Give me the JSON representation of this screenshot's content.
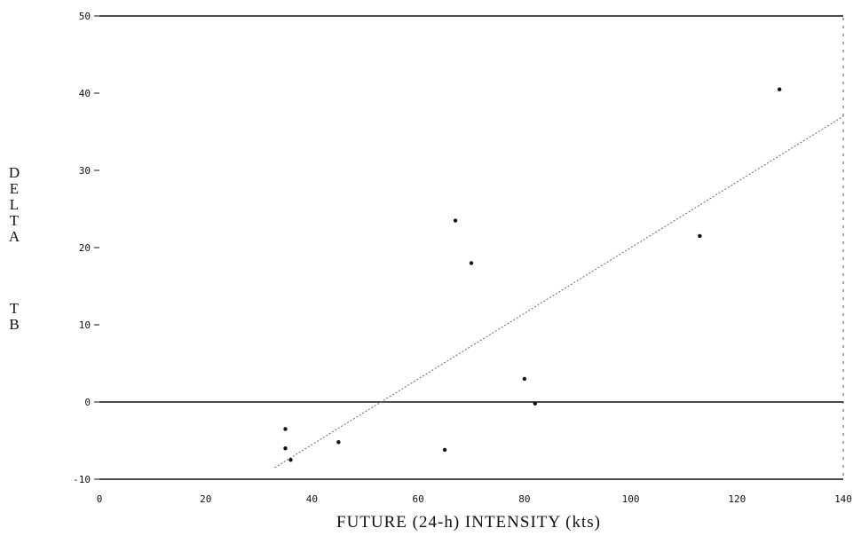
{
  "chart_data": {
    "type": "scatter",
    "title": "",
    "xlabel": "FUTURE (24-h) INTENSITY (kts)",
    "ylabel": "DELTA TB",
    "xlim": [
      0,
      140
    ],
    "ylim": [
      -10,
      50
    ],
    "x_ticks": [
      0,
      20,
      40,
      60,
      80,
      100,
      120,
      140
    ],
    "y_ticks": [
      -10,
      0,
      10,
      20,
      30,
      40,
      50
    ],
    "x_tick_labels": [
      "0",
      "20",
      "40",
      "60",
      "80",
      "100",
      "120",
      "140"
    ],
    "y_tick_labels": [
      "-10",
      "0",
      "10",
      "20",
      "30",
      "40",
      "50"
    ],
    "grid": false,
    "series": [
      {
        "points": [
          {
            "x": 35,
            "y": -3.5
          },
          {
            "x": 35,
            "y": -6
          },
          {
            "x": 36,
            "y": -7.5
          },
          {
            "x": 45,
            "y": -5.2
          },
          {
            "x": 65,
            "y": -6.2
          },
          {
            "x": 67,
            "y": 23.5
          },
          {
            "x": 70,
            "y": 18
          },
          {
            "x": 80,
            "y": 3
          },
          {
            "x": 82,
            "y": -0.2
          },
          {
            "x": 113,
            "y": 21.5
          },
          {
            "x": 128,
            "y": 40.5
          }
        ]
      }
    ],
    "regression_line": {
      "x": [
        33,
        140
      ],
      "y": [
        -8.5,
        37
      ]
    },
    "reference_lines_y": [
      -10,
      0,
      50
    ],
    "colors": {
      "ink": "#111111",
      "fit_line": "#666666"
    }
  }
}
